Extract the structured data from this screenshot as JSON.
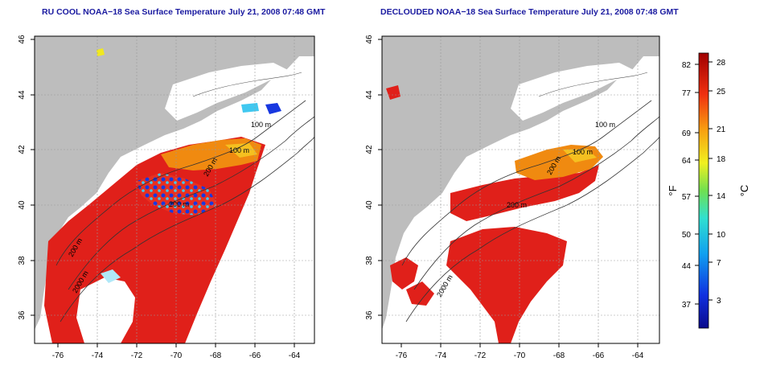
{
  "panels": [
    {
      "title": "RU COOL NOAA−18 Sea Surface Temperature July 21, 2008 07:48 GMT",
      "contour_labels": [
        "100 m",
        "100 m",
        "200 m",
        "200 m",
        "200 m",
        "2000 m"
      ],
      "x_ticks": [
        "-76",
        "-74",
        "-72",
        "-70",
        "-68",
        "-66",
        "-64"
      ],
      "y_ticks": [
        "36",
        "38",
        "40",
        "42",
        "44",
        "46"
      ]
    },
    {
      "title": "DECLOUDED NOAA−18 Sea Surface Temperature July 21, 2008 07:48 GMT",
      "contour_labels": [
        "100 m",
        "100 m",
        "200 m",
        "200 m",
        "2000 m"
      ],
      "x_ticks": [
        "-76",
        "-74",
        "-72",
        "-70",
        "-68",
        "-66",
        "-64"
      ],
      "y_ticks": [
        "36",
        "38",
        "40",
        "42",
        "44",
        "46"
      ]
    }
  ],
  "colorbar": {
    "left_unit": "°F",
    "right_unit": "°C",
    "fahrenheit_ticks": [
      "82",
      "77",
      "69",
      "64",
      "57",
      "50",
      "44",
      "37"
    ],
    "celsius_ticks": [
      "28",
      "25",
      "21",
      "18",
      "14",
      "10",
      "7",
      "3"
    ]
  },
  "colors": {
    "land": "#bdbdbd",
    "cloud": "#ffffff",
    "warm": "#e0201a",
    "title": "#1a1aa0"
  }
}
